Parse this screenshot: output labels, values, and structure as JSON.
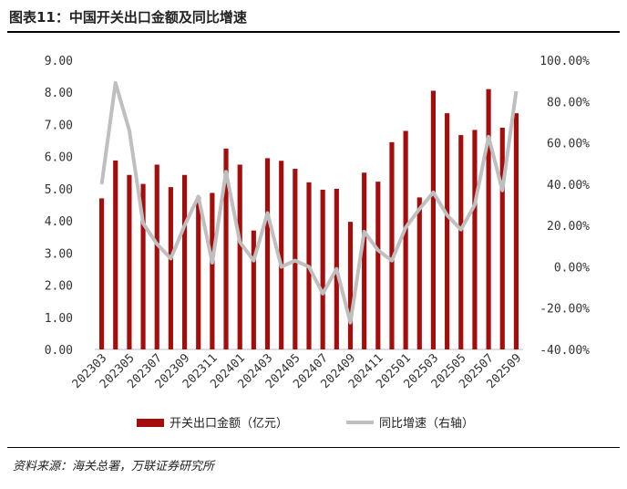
{
  "figure": {
    "title": "图表11：中国开关出口金额及同比增速",
    "source": "资料来源：海关总署，万联证券研究所"
  },
  "colors": {
    "bar": "#A50C0C",
    "line": "#BFBFBF",
    "axis_text": "#333333"
  },
  "chart_data": {
    "type": "bar",
    "categories": [
      "202303",
      "202304",
      "202305",
      "202306",
      "202307",
      "202308",
      "202309",
      "202310",
      "202311",
      "202312",
      "202401",
      "202402",
      "202403",
      "202404",
      "202405",
      "202406",
      "202407",
      "202408",
      "202409",
      "202410",
      "202411",
      "202412",
      "202501",
      "202502",
      "202503",
      "202504",
      "202505",
      "202506",
      "202507",
      "202508",
      "202509"
    ],
    "x_tick_labels": [
      "202303",
      "202305",
      "202307",
      "202309",
      "202311",
      "202401",
      "202403",
      "202405",
      "202407",
      "202409",
      "202411",
      "202501",
      "202503",
      "202505",
      "202507",
      "202509"
    ],
    "series": [
      {
        "name": "开关出口金额（亿元）",
        "type": "bar",
        "axis": "left",
        "values": [
          4.7,
          5.88,
          5.43,
          5.15,
          5.75,
          5.05,
          5.43,
          4.75,
          4.87,
          6.25,
          5.75,
          3.7,
          5.95,
          5.87,
          5.62,
          5.2,
          4.97,
          5.0,
          3.97,
          5.5,
          5.22,
          6.45,
          6.8,
          4.73,
          8.05,
          7.35,
          6.67,
          6.83,
          8.1,
          6.9,
          7.35
        ]
      },
      {
        "name": "同比增速（右轴）",
        "type": "line",
        "axis": "right",
        "values": [
          40,
          89,
          66,
          21,
          11,
          4,
          20,
          34,
          2,
          46,
          12,
          3,
          26,
          0,
          3,
          0,
          -13,
          -1,
          -27,
          17,
          8,
          3,
          19,
          28,
          36,
          25,
          18,
          30,
          63,
          37,
          85
        ]
      }
    ],
    "y_left": {
      "ticks": [
        "0.00",
        "1.00",
        "2.00",
        "3.00",
        "4.00",
        "5.00",
        "6.00",
        "7.00",
        "8.00",
        "9.00"
      ],
      "min": 0,
      "max": 9
    },
    "y_right": {
      "ticks": [
        "-40.00%",
        "-20.00%",
        "0.00%",
        "20.00%",
        "40.00%",
        "60.00%",
        "80.00%",
        "100.00%"
      ],
      "min": -40,
      "max": 100
    },
    "grid": false,
    "legend_position": "bottom"
  }
}
